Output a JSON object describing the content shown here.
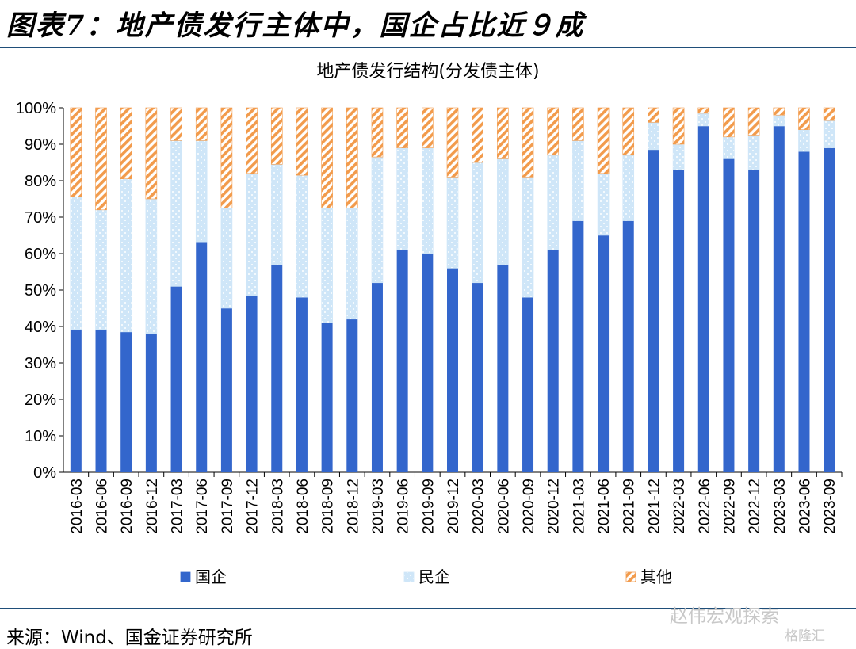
{
  "figure": {
    "title": "图表7：地产债发行主体中，国企占比近９成",
    "source": "来源：Wind、国金证券研究所",
    "watermark": "赵伟宏观探索",
    "watermark2": "格隆汇"
  },
  "colors": {
    "soe": "#3366cc",
    "private": "#cfe6f8",
    "other": "#f29b4c",
    "rule": "#1f4e79"
  },
  "chart_data": {
    "type": "bar",
    "stacked": true,
    "title": "地产债发行结构(分发债主体)",
    "xlabel": "",
    "ylabel": "",
    "ylim": [
      0,
      100
    ],
    "yticks": [
      "0%",
      "10%",
      "20%",
      "30%",
      "40%",
      "50%",
      "60%",
      "70%",
      "80%",
      "90%",
      "100%"
    ],
    "grid": false,
    "legend_position": "bottom",
    "categories": [
      "2016-03",
      "2016-06",
      "2016-09",
      "2016-12",
      "2017-03",
      "2017-06",
      "2017-09",
      "2017-12",
      "2018-03",
      "2018-06",
      "2018-09",
      "2018-12",
      "2019-03",
      "2019-06",
      "2019-09",
      "2019-12",
      "2020-03",
      "2020-06",
      "2020-09",
      "2020-12",
      "2021-03",
      "2021-06",
      "2021-09",
      "2021-12",
      "2022-03",
      "2022-06",
      "2022-09",
      "2022-12",
      "2023-03",
      "2023-06",
      "2023-09"
    ],
    "series": [
      {
        "name": "国企",
        "values": [
          39,
          39,
          38.5,
          38,
          51,
          63,
          45,
          48.5,
          57,
          48,
          41,
          42,
          52,
          61,
          60,
          56,
          52,
          57,
          48,
          61,
          69,
          65,
          69,
          88.5,
          83,
          95,
          86,
          83,
          95,
          88,
          89
        ]
      },
      {
        "name": "民企",
        "values": [
          36.5,
          33,
          42,
          37,
          40,
          28,
          27.5,
          33.5,
          27.5,
          33.5,
          31.5,
          30.5,
          34.5,
          28,
          29,
          25,
          33,
          29,
          33,
          26,
          22,
          17,
          18,
          7.5,
          7,
          3.5,
          6,
          9.5,
          3,
          6,
          7.5
        ]
      },
      {
        "name": "其他",
        "values": [
          24.5,
          28,
          19.5,
          25,
          9,
          9,
          27.5,
          18,
          15.5,
          18.5,
          27.5,
          27.5,
          13.5,
          11,
          11,
          19,
          15,
          14,
          19,
          13,
          9,
          18,
          13,
          4,
          10,
          1.5,
          8,
          7.5,
          2,
          6,
          3.5
        ]
      }
    ]
  }
}
